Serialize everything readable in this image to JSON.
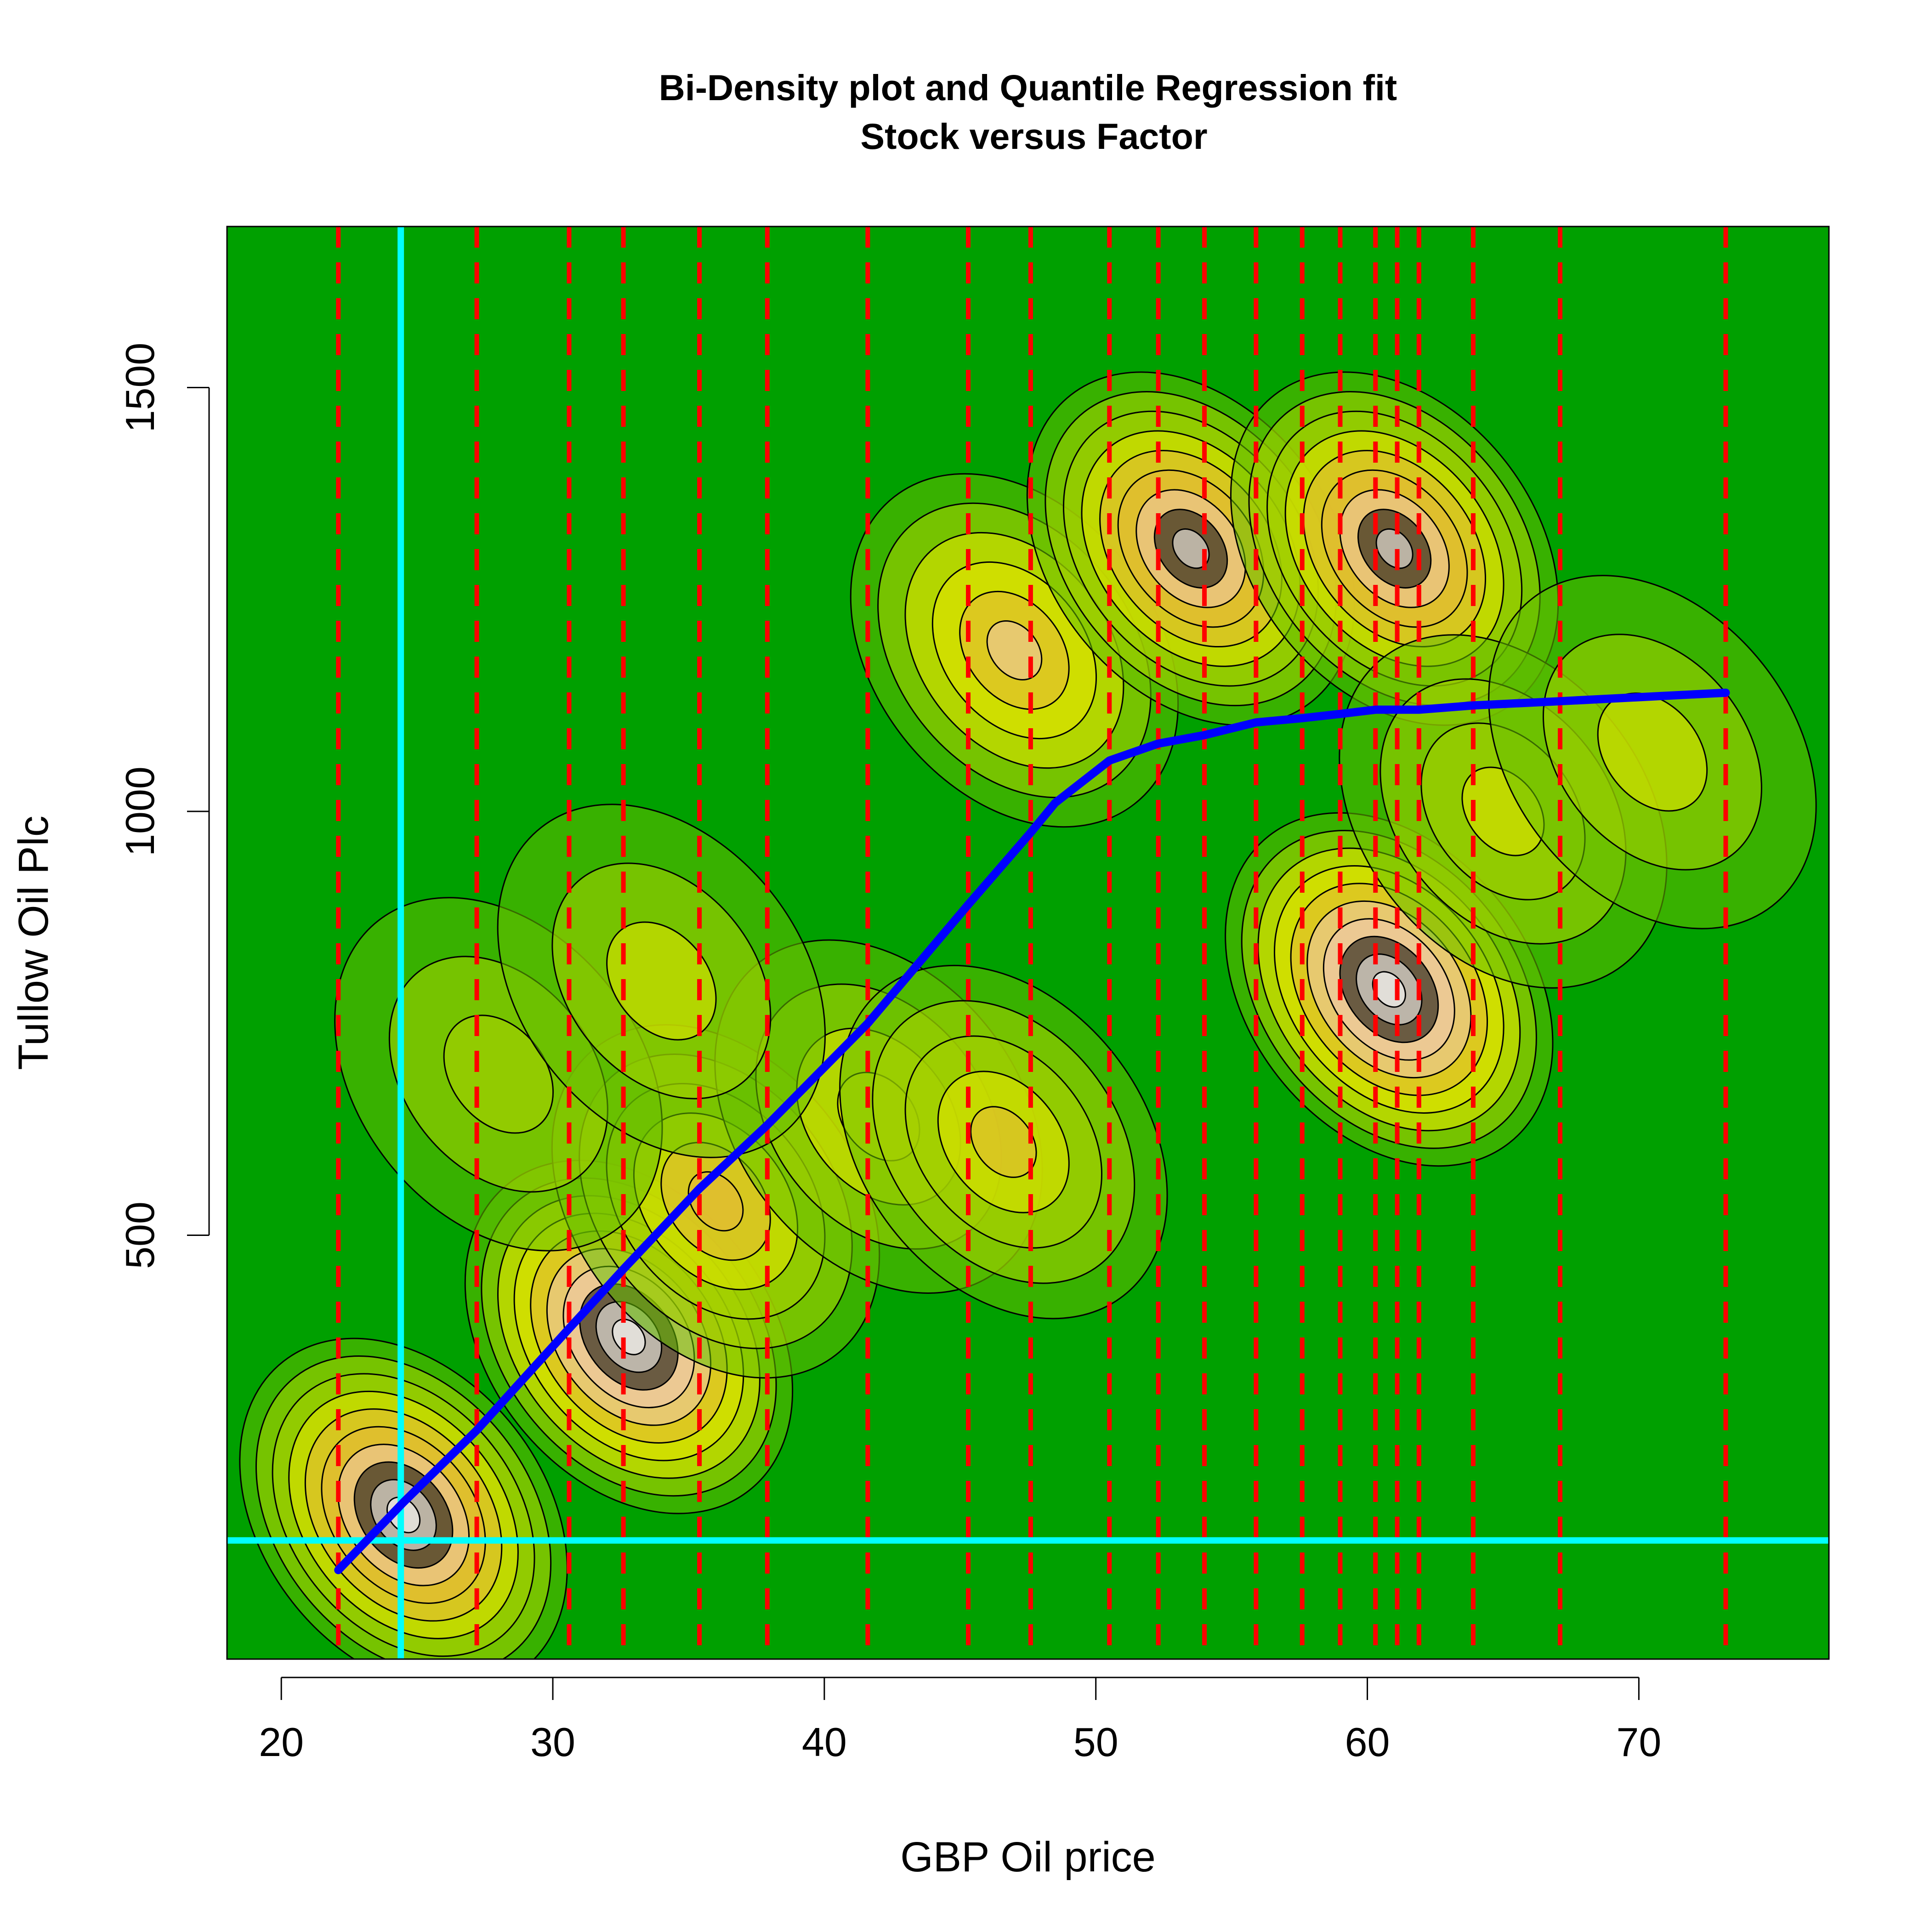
{
  "chart_data": {
    "type": "contour",
    "title": "Bi-Density plot and Quantile Regression fit",
    "subtitle": "Stock versus Factor",
    "xlabel": "GBP Oil price",
    "ylabel": "Tullow Oil Plc",
    "xlim": [
      18,
      77
    ],
    "ylim": [
      0,
      1690
    ],
    "xticks": [
      20,
      30,
      40,
      50,
      60,
      70
    ],
    "yticks": [
      500,
      1000,
      1500
    ],
    "background_color": "#00a000",
    "density_colors": [
      "#00a000",
      "#66c000",
      "#aad200",
      "#e6e600",
      "#e8b838",
      "#f0c8b0",
      "#ffffff",
      "#000000"
    ],
    "density_peaks": [
      {
        "x": 24.5,
        "y": 170,
        "height": 0.95
      },
      {
        "x": 32.8,
        "y": 380,
        "height": 1.0
      },
      {
        "x": 36.0,
        "y": 540,
        "height": 0.55
      },
      {
        "x": 42.0,
        "y": 640,
        "height": 0.4
      },
      {
        "x": 46.6,
        "y": 610,
        "height": 0.45
      },
      {
        "x": 28.0,
        "y": 690,
        "height": 0.25
      },
      {
        "x": 34.0,
        "y": 800,
        "height": 0.3
      },
      {
        "x": 47.0,
        "y": 1190,
        "height": 0.6
      },
      {
        "x": 53.5,
        "y": 1310,
        "height": 0.85
      },
      {
        "x": 61.0,
        "y": 1310,
        "height": 0.85
      },
      {
        "x": 60.8,
        "y": 790,
        "height": 1.0
      },
      {
        "x": 65.0,
        "y": 1000,
        "height": 0.35
      },
      {
        "x": 70.5,
        "y": 1070,
        "height": 0.3
      }
    ],
    "quantile_regression_line": {
      "color": "#0000ff",
      "x": [
        22.1,
        24.5,
        27.2,
        30.6,
        32.6,
        35.4,
        37.9,
        41.6,
        45.3,
        47.6,
        48.5,
        50.5,
        52.3,
        54.0,
        55.9,
        57.6,
        59.0,
        60.3,
        61.1,
        61.9,
        63.9,
        67.1,
        73.2
      ],
      "y": [
        105,
        185,
        270,
        390,
        460,
        555,
        630,
        750,
        890,
        975,
        1010,
        1060,
        1080,
        1090,
        1105,
        1110,
        1115,
        1120,
        1120,
        1120,
        1125,
        1130,
        1140
      ]
    },
    "vertical_reference_lines": {
      "color": "#ff0000",
      "style": "dashed",
      "x": [
        22.1,
        27.2,
        30.6,
        32.6,
        35.4,
        37.9,
        41.6,
        45.3,
        47.6,
        50.5,
        52.3,
        54.0,
        55.9,
        57.6,
        59.0,
        60.3,
        61.1,
        61.9,
        63.9,
        67.1,
        73.2
      ]
    },
    "crosshair": {
      "color": "#00ffff",
      "x": 24.4,
      "y": 140
    }
  }
}
